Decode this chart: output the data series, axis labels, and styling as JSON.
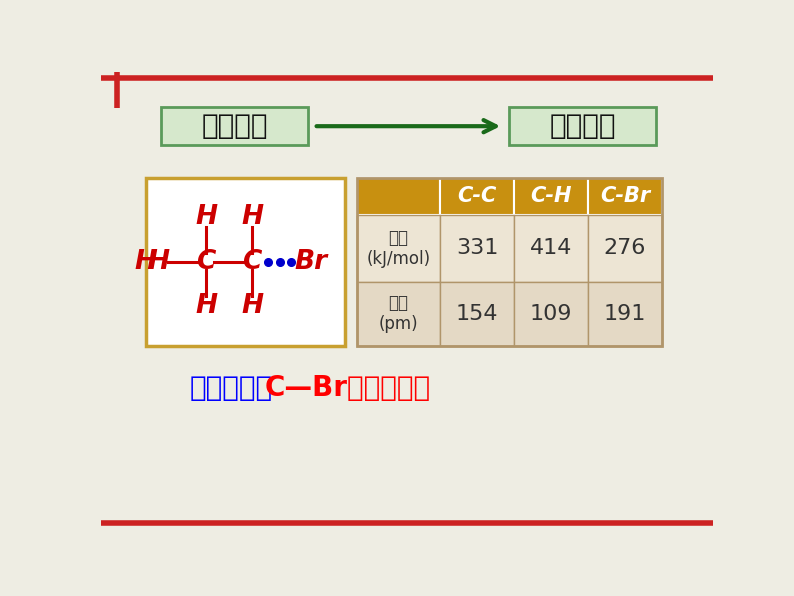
{
  "bg_color": "#eeede3",
  "border_top_color": "#cc2222",
  "box1_text": "结构分析",
  "box2_text": "化学性质",
  "box_bg": "#d6e8cc",
  "box_border": "#5a9a5a",
  "arrow_color": "#1a6a1a",
  "mol_box_border": "#c8a030",
  "table_header_bg": "#c89010",
  "table_header_text": "#ffffff",
  "table_row1_bg": "#ede5d4",
  "table_row2_bg": "#e4d9c5",
  "table_border_color": "#b0956a",
  "table_text_color": "#333333",
  "table_headers": [
    "",
    "C-C",
    "C-H",
    "C-Br"
  ],
  "table_row1_label": "键能\n(kJ/mol)",
  "table_row2_label": "键长\n(pm)",
  "table_row1_values": [
    "331",
    "414",
    "276"
  ],
  "table_row2_values": [
    "154",
    "109",
    "191"
  ],
  "analysis_text": "数据分析：C—Br键易断裂；",
  "analysis_blue_part": "数据分析：",
  "analysis_red_part": "C—Br键易断裂；",
  "mol_red_color": "#cc0000",
  "mol_blue_color": "#0000cc"
}
